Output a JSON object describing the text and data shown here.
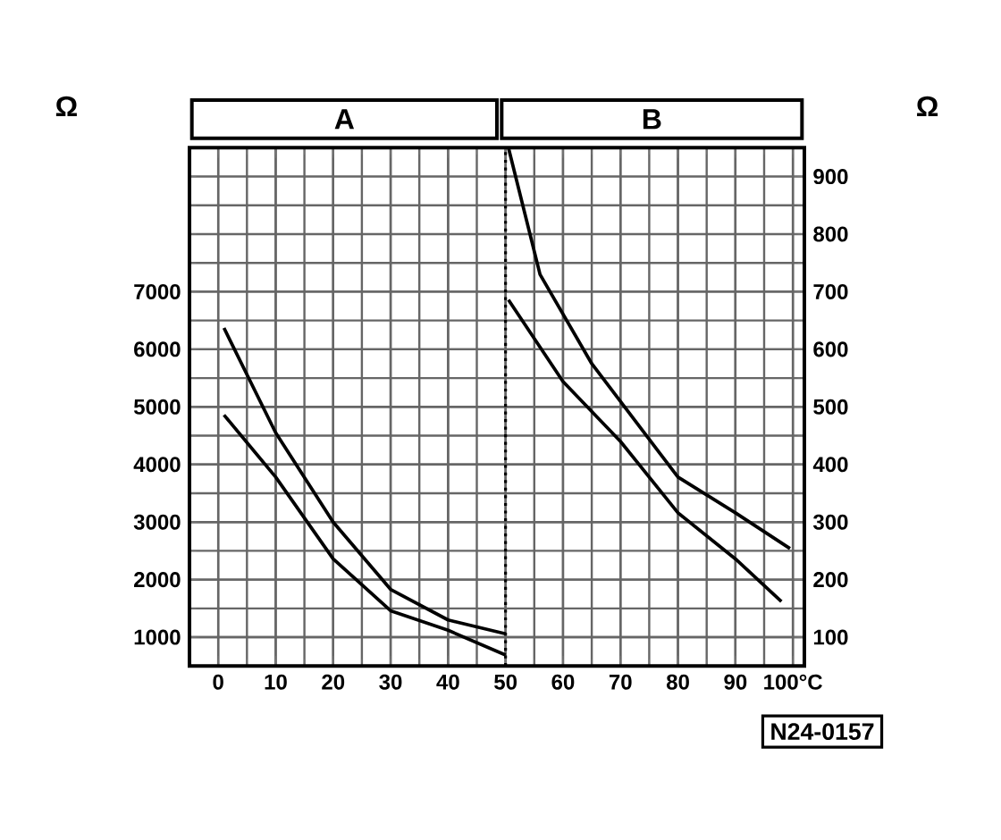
{
  "chart_data": {
    "type": "line",
    "ylabel": "Ω",
    "y2label": "Ω",
    "annotations": [
      "A",
      "B",
      "N24-0157"
    ],
    "x": [
      1,
      10,
      20,
      30,
      40,
      50
    ],
    "xlim": [
      -5,
      102
    ],
    "xticks": [
      0,
      10,
      20,
      30,
      40,
      50,
      60,
      70,
      80,
      90,
      {
        "value": 100,
        "label": "100°C"
      }
    ],
    "ylim": [
      500,
      9500
    ],
    "yticks": [
      1000,
      2000,
      3000,
      4000,
      5000,
      6000,
      7000
    ],
    "y2lim": [
      50,
      950
    ],
    "y2ticks": [
      100,
      200,
      300,
      400,
      500,
      600,
      700,
      800,
      900
    ],
    "grid": true,
    "marker": "none",
    "line_style": "solid",
    "ref_lines": [
      {
        "axis": "x",
        "value": 50,
        "line_style": "dotted",
        "color": "#000000"
      }
    ],
    "series": [
      {
        "color": "#000000",
        "values": [
          6370,
          4550,
          3000,
          1830,
          1300,
          1060
        ]
      },
      {
        "color": "#000000",
        "values": [
          4860,
          3780,
          2360,
          1460,
          1120,
          690
        ]
      },
      {
        "color": "#000000",
        "axis": "y2",
        "x": [
          50.5,
          56,
          65,
          80,
          90,
          99.5
        ],
        "values": [
          950,
          730,
          575,
          378,
          316,
          254
        ]
      },
      {
        "color": "#000000",
        "axis": "y2",
        "x": [
          50.5,
          60,
          70,
          80,
          90,
          98
        ],
        "values": [
          686,
          544,
          440,
          316,
          236,
          162
        ]
      }
    ]
  }
}
